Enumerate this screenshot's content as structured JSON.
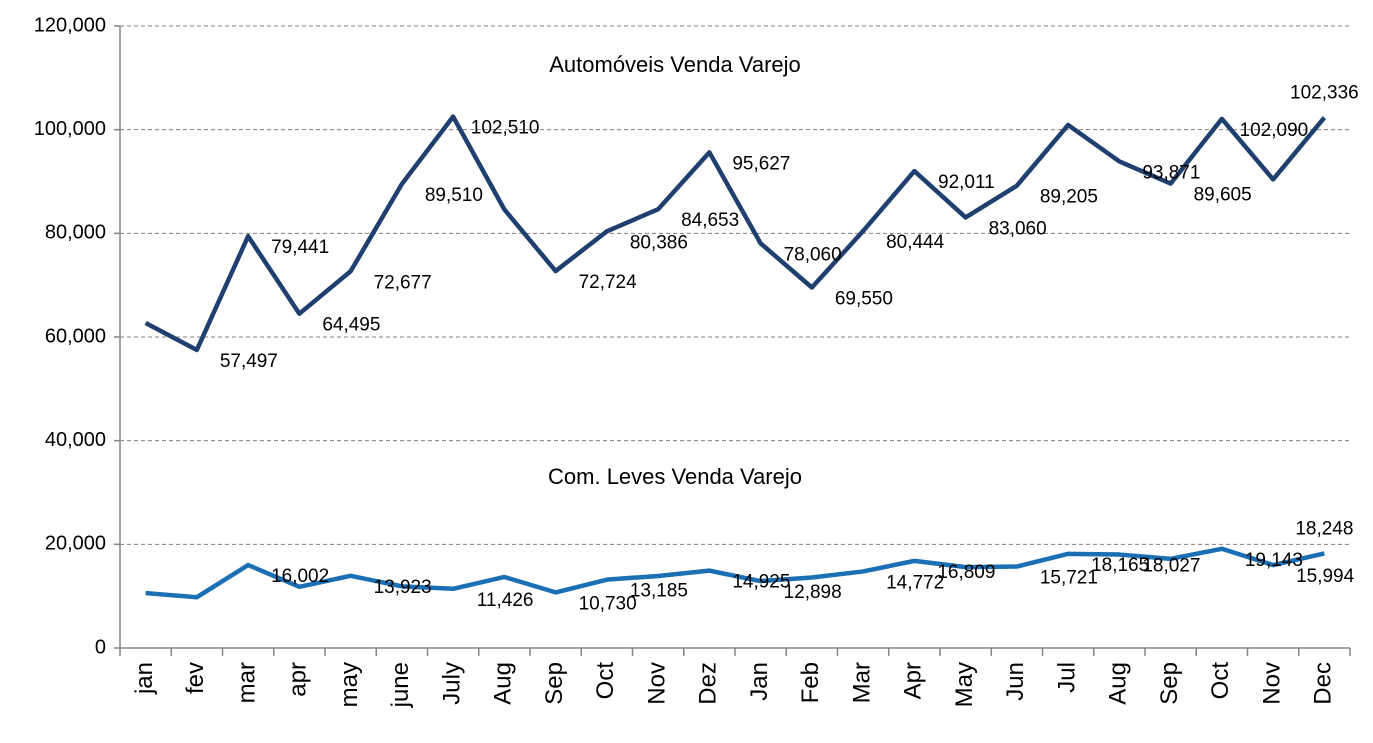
{
  "chart_data": {
    "type": "line",
    "categories": [
      "jan",
      "fev",
      "mar",
      "apr",
      "may",
      "june",
      "July",
      "Aug",
      "Sep",
      "Oct",
      "Nov",
      "Dez",
      "Jan",
      "Feb",
      "Mar",
      "Apr",
      "May",
      "Jun",
      "Jul",
      "Aug",
      "Sep",
      "Oct",
      "Nov",
      "Dec"
    ],
    "series": [
      {
        "name": "Automóveis Venda Varejo",
        "color": "#1f3f6e",
        "values": [
          62700,
          57497,
          79441,
          64495,
          72677,
          89510,
          102510,
          84600,
          72724,
          80386,
          84653,
          95627,
          78060,
          69550,
          80444,
          92011,
          83060,
          89205,
          100900,
          93871,
          89605,
          102090,
          90400,
          102336
        ],
        "value_labels": [
          null,
          "57,497",
          "79,441",
          "64,495",
          "72,677",
          "89,510",
          "102,510",
          null,
          "72,724",
          "80,386",
          "84,653",
          "95,627",
          "78,060",
          "69,550",
          "80,444",
          "92,011",
          "83,060",
          "89,205",
          null,
          "93,871",
          "89,605",
          "102,090",
          null,
          "102,336"
        ]
      },
      {
        "name": "Com. Leves Venda Varejo",
        "color": "#1a6fb5",
        "values": [
          10600,
          9800,
          16002,
          11800,
          13923,
          11900,
          11426,
          13700,
          10730,
          13185,
          13900,
          14925,
          12898,
          13600,
          14772,
          16809,
          15600,
          15721,
          18165,
          18027,
          17200,
          19143,
          15994,
          18248
        ],
        "value_labels": [
          null,
          null,
          "16,002",
          null,
          "13,923",
          null,
          "11,426",
          null,
          "10,730",
          "13,185",
          null,
          "14,925",
          "12,898",
          null,
          "14,772",
          "16,809",
          null,
          "15,721",
          "18,165",
          "18,027",
          null,
          "19,143",
          "15,994",
          "18,248"
        ]
      }
    ],
    "ylim": [
      0,
      120000
    ],
    "yticks": [
      0,
      {
        "value": 20000,
        "label": "20,000"
      },
      {
        "value": 40000,
        "label": "40,000"
      },
      {
        "value": 60000,
        "label": "60,000"
      },
      {
        "value": 80000,
        "label": "80,000"
      },
      {
        "value": 100000,
        "label": "100,000"
      },
      {
        "value": 120000,
        "label": "120,000"
      }
    ],
    "grid": true
  }
}
